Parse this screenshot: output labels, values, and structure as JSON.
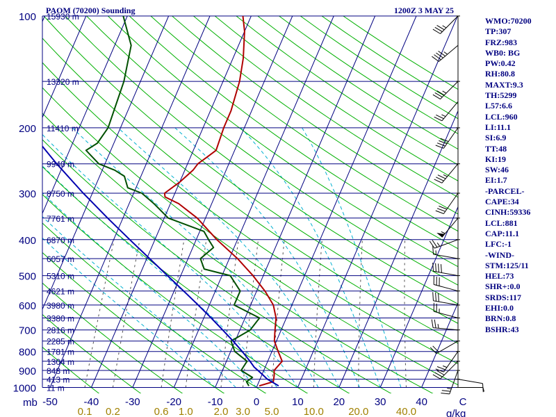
{
  "header": {
    "station": "PAOM (70200) Sounding",
    "time": "1200Z  3 MAY 25"
  },
  "stats": [
    "WMO:70200",
    "TP:307",
    "FRZ:983",
    "WB0: BG",
    "PW:0.42",
    "RH:80.8",
    "MAXT:9.3",
    "TH:5299",
    "L57:6.6",
    "LCL:960",
    "LI:11.1",
    "SI:6.9",
    "TT:48",
    "KI:19",
    "SW:46",
    "EI:1.7",
    "-PARCEL-",
    "CAPE:34",
    "CINH:59336",
    "LCL:881",
    "CAP:11.1",
    "LFC:-1",
    "-WIND-",
    "STM:125/11",
    "HEL:73",
    "SHR+:0.0",
    "SRDS:117",
    "EHI:0.0",
    "BRN:0.8",
    "BSHR:43"
  ],
  "colors": {
    "isobar": "#000080",
    "isotherm": "#000080",
    "dry_adiabat": "#00b000",
    "moist_adiabat": "#00b0d0",
    "mixing_ratio": "#505050",
    "temperature": "#b00000",
    "dewpoint": "#005000",
    "parcel": "#0000b0",
    "mixing_ratio_label": "#a08000"
  },
  "chart_data": {
    "type": "line",
    "skew_t": true,
    "pressure_axis": {
      "scale": "log",
      "range": [
        1000,
        100
      ],
      "unit": "mb",
      "labels": [
        {
          "p": 100,
          "text": "100"
        },
        {
          "p": 200,
          "text": "200"
        },
        {
          "p": 300,
          "text": "300"
        },
        {
          "p": 400,
          "text": "400"
        },
        {
          "p": 500,
          "text": "500"
        },
        {
          "p": 600,
          "text": "600"
        },
        {
          "p": 700,
          "text": "700"
        },
        {
          "p": 800,
          "text": "800"
        },
        {
          "p": 900,
          "text": "900"
        },
        {
          "p": 1000,
          "text": "1000"
        }
      ]
    },
    "temperature_axis": {
      "range": [
        -50,
        50
      ],
      "ticks": [
        {
          "t": -50,
          "text": "-50"
        },
        {
          "t": -40,
          "text": "-40"
        },
        {
          "t": -30,
          "text": "-30"
        },
        {
          "t": -20,
          "text": "-20"
        },
        {
          "t": -10,
          "text": "-10"
        },
        {
          "t": 0,
          "text": "0"
        },
        {
          "t": 10,
          "text": "10"
        },
        {
          "t": 20,
          "text": "20"
        },
        {
          "t": 30,
          "text": "30"
        },
        {
          "t": 40,
          "text": "40"
        },
        {
          "t": 50,
          "text": "C"
        }
      ]
    },
    "height_labels": [
      {
        "p": 100,
        "text": "15930 m"
      },
      {
        "p": 150,
        "text": "13320 m"
      },
      {
        "p": 200,
        "text": "11410 m"
      },
      {
        "p": 250,
        "text": "9940 m"
      },
      {
        "p": 300,
        "text": "8750 m"
      },
      {
        "p": 350,
        "text": "7761 m"
      },
      {
        "p": 400,
        "text": "6870 m"
      },
      {
        "p": 450,
        "text": "6057 m"
      },
      {
        "p": 500,
        "text": "5310 m"
      },
      {
        "p": 550,
        "text": "4621 m"
      },
      {
        "p": 600,
        "text": "3980 m"
      },
      {
        "p": 650,
        "text": "3380 m"
      },
      {
        "p": 700,
        "text": "2816 m"
      },
      {
        "p": 750,
        "text": "2285 m"
      },
      {
        "p": 800,
        "text": "1781 m"
      },
      {
        "p": 850,
        "text": "1304 m"
      },
      {
        "p": 900,
        "text": "848 m"
      },
      {
        "p": 950,
        "text": "413 m"
      },
      {
        "p": 1000,
        "text": "11 m"
      }
    ],
    "mixing_ratio_labels": {
      "unit": "g/kg",
      "values": [
        "0.1",
        "0.2",
        "0.6",
        "1.0",
        "2.0",
        "3.0",
        "5.0",
        "10.0",
        "20.0",
        "40.0"
      ]
    },
    "series": [
      {
        "name": "temperature",
        "points": [
          [
            990,
            0.5
          ],
          [
            965,
            3.5
          ],
          [
            925,
            3.0
          ],
          [
            900,
            2.5
          ],
          [
            850,
            3.5
          ],
          [
            800,
            1.5
          ],
          [
            750,
            -0.5
          ],
          [
            700,
            -1.5
          ],
          [
            650,
            -2.5
          ],
          [
            600,
            -4.5
          ],
          [
            550,
            -8.0
          ],
          [
            500,
            -12.5
          ],
          [
            450,
            -18.0
          ],
          [
            400,
            -25.0
          ],
          [
            350,
            -32.0
          ],
          [
            320,
            -38.0
          ],
          [
            307,
            -42.0
          ],
          [
            300,
            -42.5
          ],
          [
            280,
            -40.0
          ],
          [
            260,
            -38.0
          ],
          [
            250,
            -37.5
          ],
          [
            240,
            -36.0
          ],
          [
            230,
            -34.5
          ],
          [
            200,
            -35.0
          ],
          [
            180,
            -35.0
          ],
          [
            150,
            -36.0
          ],
          [
            130,
            -37.5
          ],
          [
            110,
            -40.0
          ],
          [
            100,
            -42.0
          ]
        ]
      },
      {
        "name": "dewpoint",
        "points": [
          [
            990,
            -2.0
          ],
          [
            965,
            -3.0
          ],
          [
            940,
            -2.0
          ],
          [
            900,
            -5.5
          ],
          [
            850,
            -5.0
          ],
          [
            800,
            -9.0
          ],
          [
            750,
            -11.0
          ],
          [
            700,
            -7.5
          ],
          [
            650,
            -6.5
          ],
          [
            600,
            -14.0
          ],
          [
            550,
            -14.0
          ],
          [
            500,
            -18.0
          ],
          [
            480,
            -25.0
          ],
          [
            450,
            -27.0
          ],
          [
            420,
            -25.0
          ],
          [
            400,
            -27.0
          ],
          [
            380,
            -29.0
          ],
          [
            350,
            -39.0
          ],
          [
            320,
            -44.0
          ],
          [
            300,
            -48.0
          ],
          [
            290,
            -52.0
          ],
          [
            270,
            -54.0
          ],
          [
            260,
            -57.0
          ],
          [
            250,
            -61.5
          ],
          [
            230,
            -66.0
          ],
          [
            220,
            -64.0
          ],
          [
            200,
            -63.0
          ],
          [
            150,
            -64.0
          ],
          [
            120,
            -66.0
          ],
          [
            100,
            -71.0
          ]
        ]
      },
      {
        "name": "parcel",
        "points": [
          [
            990,
            5.2
          ],
          [
            950,
            1.8
          ],
          [
            900,
            -1.4
          ],
          [
            881,
            -2.7
          ],
          [
            850,
            -4.3
          ],
          [
            800,
            -7.2
          ],
          [
            750,
            -10.5
          ],
          [
            700,
            -14.2
          ],
          [
            650,
            -18.2
          ],
          [
            600,
            -22.7
          ],
          [
            550,
            -27.7
          ],
          [
            500,
            -33.2
          ],
          [
            450,
            -39.3
          ],
          [
            400,
            -46.1
          ],
          [
            350,
            -53.7
          ],
          [
            300,
            -62.2
          ],
          [
            250,
            -71.7
          ],
          [
            200,
            -82.6
          ],
          [
            150,
            -95.5
          ],
          [
            125,
            -103.0
          ]
        ]
      }
    ],
    "wind_barbs": [
      {
        "p": 100,
        "dir": 225,
        "spd": 35
      },
      {
        "p": 120,
        "dir": 230,
        "spd": 45
      },
      {
        "p": 150,
        "dir": 225,
        "spd": 35
      },
      {
        "p": 170,
        "dir": 220,
        "spd": 25
      },
      {
        "p": 200,
        "dir": 215,
        "spd": 40
      },
      {
        "p": 250,
        "dir": 220,
        "spd": 35
      },
      {
        "p": 300,
        "dir": 215,
        "spd": 30
      },
      {
        "p": 350,
        "dir": 220,
        "spd": 55
      },
      {
        "p": 400,
        "dir": 250,
        "spd": 25
      },
      {
        "p": 450,
        "dir": 280,
        "spd": 15
      },
      {
        "p": 500,
        "dir": 280,
        "spd": 40
      },
      {
        "p": 550,
        "dir": 285,
        "spd": 30
      },
      {
        "p": 600,
        "dir": 280,
        "spd": 30
      },
      {
        "p": 650,
        "dir": 285,
        "spd": 25
      },
      {
        "p": 700,
        "dir": 275,
        "spd": 25
      },
      {
        "p": 750,
        "dir": 240,
        "spd": 20
      },
      {
        "p": 800,
        "dir": 215,
        "spd": 25
      },
      {
        "p": 850,
        "dir": 225,
        "spd": 30
      },
      {
        "p": 900,
        "dir": 200,
        "spd": 25
      },
      {
        "p": 950,
        "dir": 100,
        "spd": 10
      },
      {
        "p": 1000,
        "dir": 90,
        "spd": 5
      }
    ]
  }
}
